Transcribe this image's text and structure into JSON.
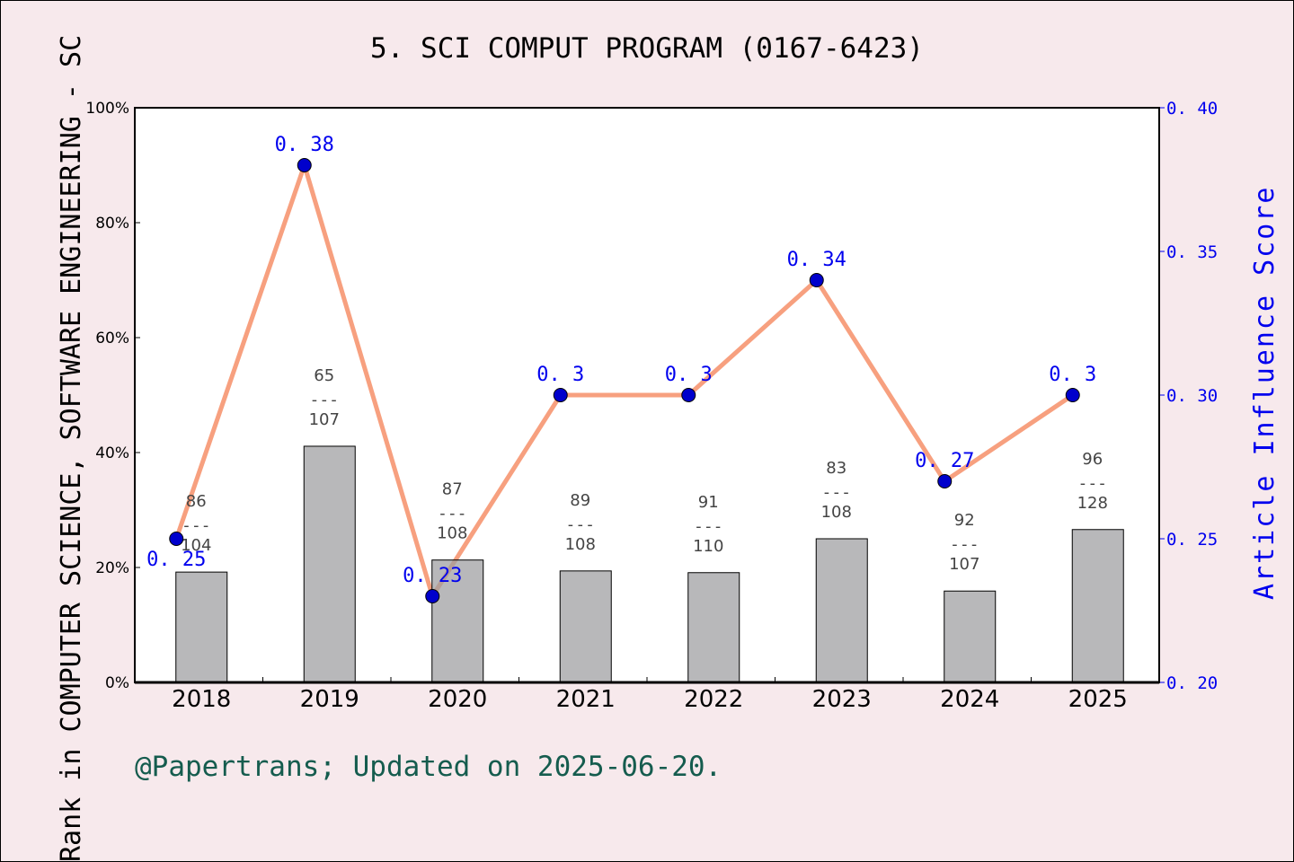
{
  "chart_data": {
    "type": "bar+line",
    "title": "5. SCI COMPUT PROGRAM (0167-6423)",
    "ylabel": "Rank in COMPUTER SCIENCE, SOFTWARE ENGINEERING - SC",
    "y2label": "Article Influence Score",
    "categories": [
      "2018",
      "2019",
      "2020",
      "2021",
      "2022",
      "2023",
      "2024",
      "2025"
    ],
    "bars": {
      "values": [
        19.2,
        41.1,
        21.3,
        19.4,
        19.1,
        25.0,
        15.9,
        26.6
      ],
      "ranks": [
        "86",
        "65",
        "87",
        "89",
        "91",
        "83",
        "92",
        "96"
      ],
      "totals": [
        "104",
        "107",
        "108",
        "108",
        "110",
        "108",
        "107",
        "128"
      ],
      "color": "#b8b9bb"
    },
    "line": {
      "values": [
        0.25,
        0.38,
        0.23,
        0.3,
        0.3,
        0.34,
        0.27,
        0.3
      ],
      "labels": [
        "0.25",
        "0.38",
        "0.23",
        "0.3",
        "0.3",
        "0.34",
        "0.27",
        "0.3"
      ],
      "color": "#f7a07f",
      "marker_color": "#0000cc"
    },
    "ylim": [
      0,
      100
    ],
    "yticks": [
      "0%",
      "20%",
      "40%",
      "60%",
      "80%",
      "100%"
    ],
    "y2lim": [
      0.2,
      0.4
    ],
    "y2ticks": [
      "0.20",
      "0.25",
      "0.30",
      "0.35",
      "0.40"
    ],
    "grid": false
  },
  "footer": "@Papertrans; Updated on 2025-06-20."
}
